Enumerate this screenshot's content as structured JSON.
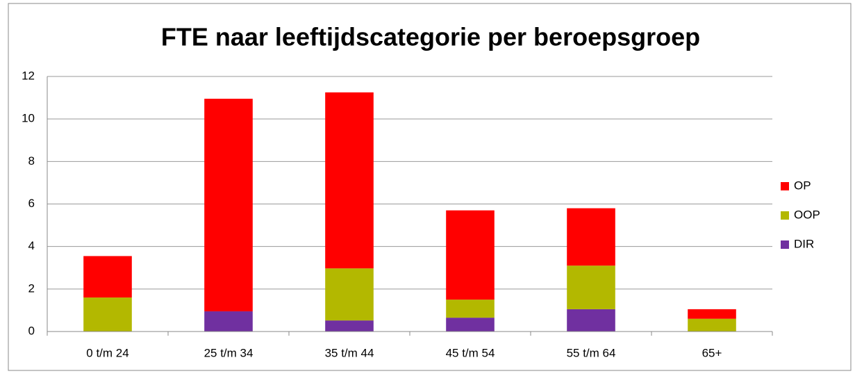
{
  "chart_data": {
    "type": "stacked_bar",
    "title": "FTE naar leeftijdscategorie per beroepsgroep",
    "categories": [
      "0 t/m 24",
      "25 t/m 34",
      "35 t/m 44",
      "45 t/m 54",
      "55 t/m 64",
      "65+"
    ],
    "series": [
      {
        "name": "DIR",
        "color": "#7030a0",
        "values": [
          0,
          0.95,
          0.52,
          0.65,
          1.05,
          0
        ]
      },
      {
        "name": "OOP",
        "color": "#b3b800",
        "values": [
          1.6,
          0,
          2.45,
          0.85,
          2.05,
          0.6
        ]
      },
      {
        "name": "OP",
        "color": "#ff0000",
        "values": [
          1.95,
          10.0,
          8.28,
          4.2,
          2.7,
          0.45
        ]
      }
    ],
    "ylim": [
      0,
      12
    ],
    "yticks": [
      0,
      2,
      4,
      6,
      8,
      10,
      12
    ],
    "grid": true,
    "legend": "right"
  }
}
